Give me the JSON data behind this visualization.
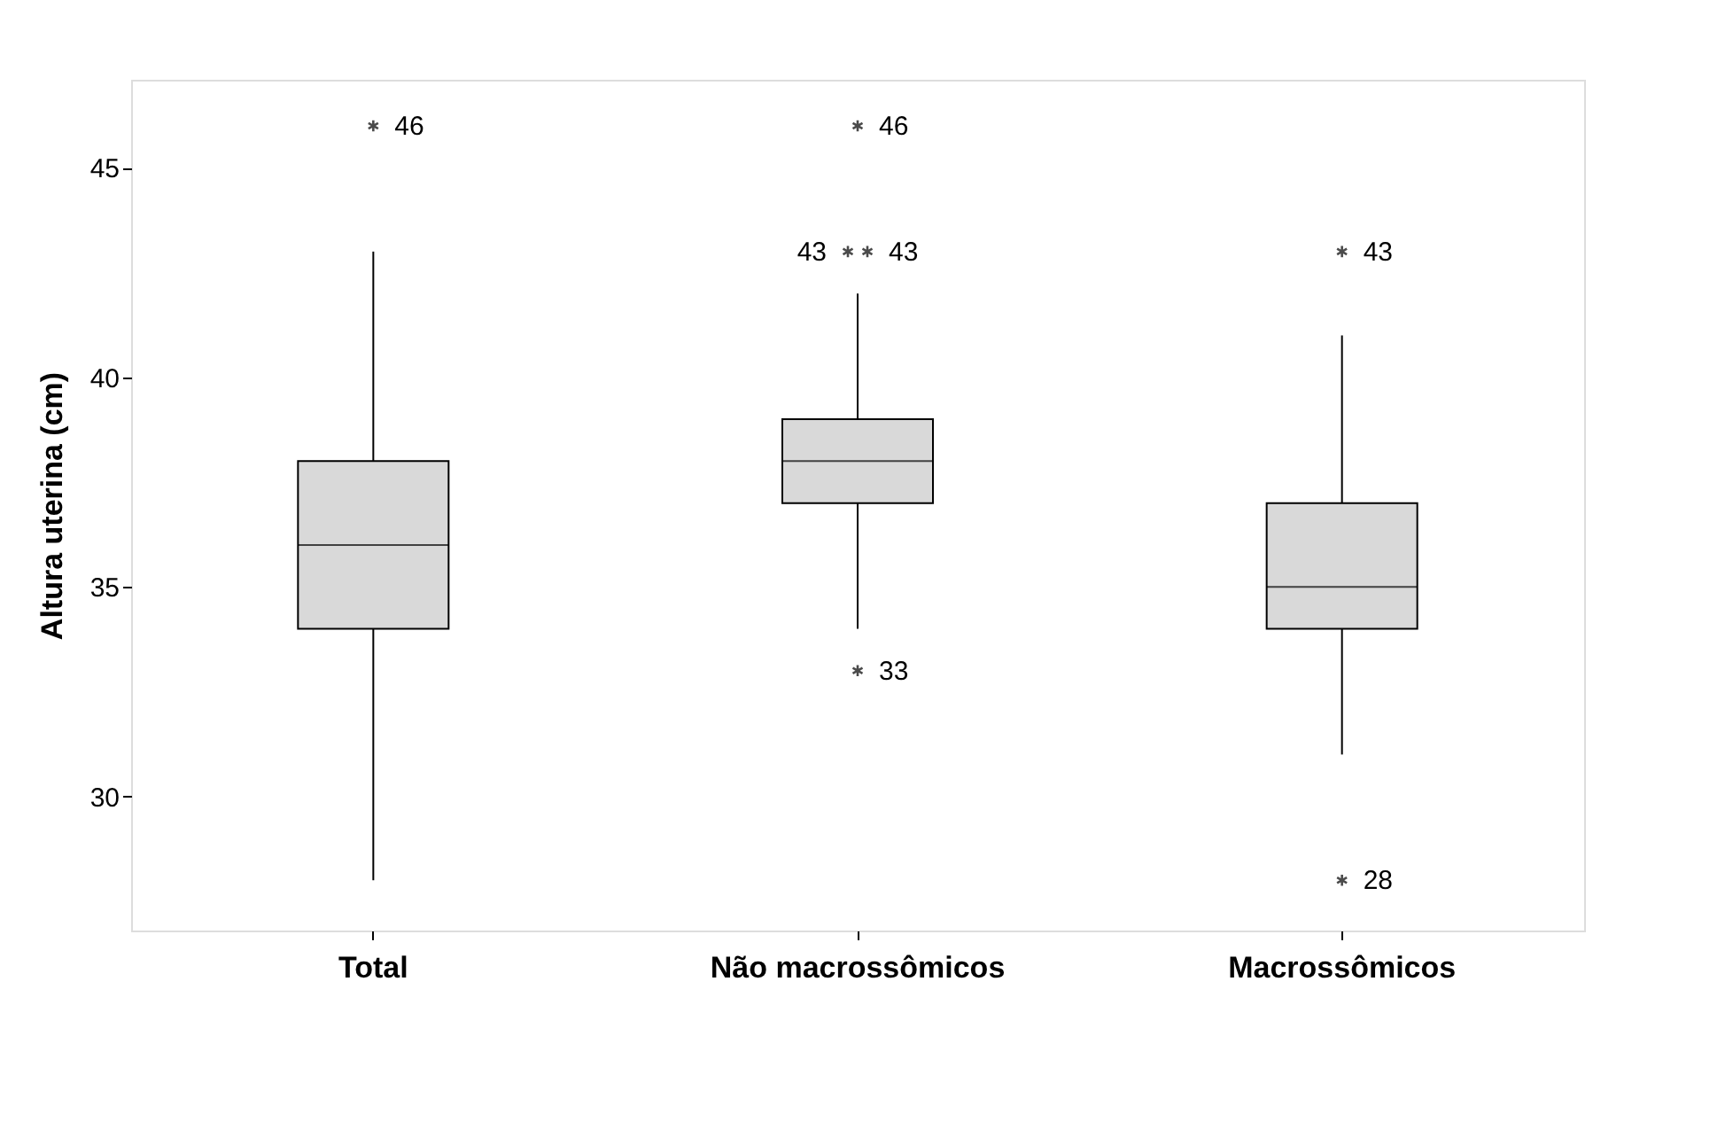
{
  "chart_data": {
    "type": "box",
    "ylabel": "Altura uterina (cm)",
    "categories": [
      "Total",
      "Não macrossômicos",
      "Macrossômicos"
    ],
    "boxes": [
      {
        "low": 28,
        "q1": 34,
        "median": 36,
        "q3": 38,
        "high": 43,
        "outliers": [
          46
        ]
      },
      {
        "low": 34,
        "q1": 37,
        "median": 38,
        "q3": 39,
        "high": 42,
        "outliers": [
          46,
          43,
          43,
          33
        ]
      },
      {
        "low": 31,
        "q1": 34,
        "median": 35,
        "q3": 37,
        "high": 41,
        "outliers": [
          43,
          28
        ]
      }
    ],
    "color": "#d9d9d9",
    "marker": "cross",
    "ylim": [
      26.8,
      47.1
    ],
    "yticks": [
      30,
      35,
      40,
      45
    ],
    "grid": false,
    "annotations": [
      "46",
      "46",
      "43",
      "43",
      "33",
      "43",
      "28"
    ]
  }
}
